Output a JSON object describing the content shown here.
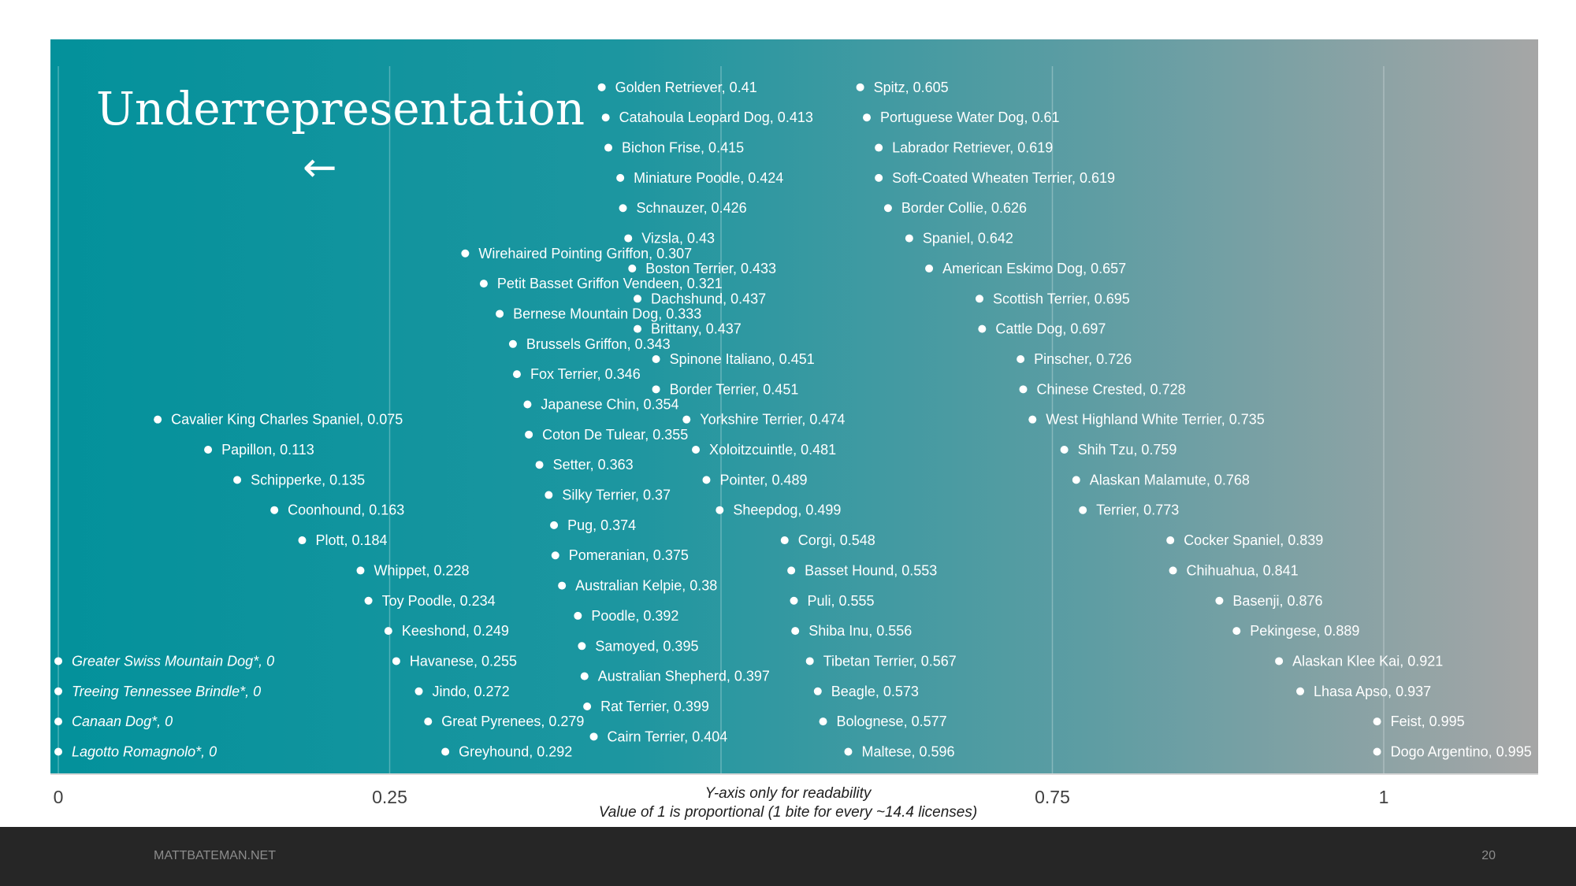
{
  "slide": {
    "footer_site": "MATTBATEMAN.NET",
    "page_number": "20"
  },
  "colors": {
    "gradient_start": "#03919b",
    "gradient_end": "#a5a5a5",
    "points": "#ffffff",
    "footer_bg": "#262626"
  },
  "chart_data": {
    "type": "scatter",
    "title": "Underrepresentation",
    "title_arrow": "←",
    "notes": [
      "Y-axis only for readability",
      "Value of 1 is proportional (1 bite for every ~14.4 licenses)"
    ],
    "x_ticks": [
      "0",
      "0.25",
      "0.75",
      "1"
    ],
    "x_tick_values": [
      0,
      0.25,
      0.75,
      1
    ],
    "xlim": [
      0,
      1.12
    ],
    "grid": true,
    "ylim": [
      0,
      23
    ],
    "points": [
      {
        "label": "Golden Retriever, 0.41",
        "x": 0.41,
        "y": 22.3
      },
      {
        "label": "Catahoula Leopard Dog, 0.413",
        "x": 0.413,
        "y": 21.3
      },
      {
        "label": "Bichon Frise, 0.415",
        "x": 0.415,
        "y": 20.3
      },
      {
        "label": "Miniature Poodle, 0.424",
        "x": 0.424,
        "y": 19.3
      },
      {
        "label": "Schnauzer, 0.426",
        "x": 0.426,
        "y": 18.3
      },
      {
        "label": "Vizsla, 0.43",
        "x": 0.43,
        "y": 17.3
      },
      {
        "label": "Boston Terrier, 0.433",
        "x": 0.433,
        "y": 16.3
      },
      {
        "label": "Dachshund, 0.437",
        "x": 0.437,
        "y": 15.3
      },
      {
        "label": "Brittany, 0.437",
        "x": 0.437,
        "y": 14.3
      },
      {
        "label": "Spinone Italiano, 0.451",
        "x": 0.451,
        "y": 13.3
      },
      {
        "label": "Border Terrier, 0.451",
        "x": 0.451,
        "y": 12.3
      },
      {
        "label": "Yorkshire Terrier, 0.474",
        "x": 0.474,
        "y": 11.3
      },
      {
        "label": "Xoloitzcuintle, 0.481",
        "x": 0.481,
        "y": 10.3
      },
      {
        "label": "Pointer, 0.489",
        "x": 0.489,
        "y": 9.3
      },
      {
        "label": "Sheepdog, 0.499",
        "x": 0.499,
        "y": 8.3
      },
      {
        "label": "Corgi, 0.548",
        "x": 0.548,
        "y": 7.3
      },
      {
        "label": "Basset Hound, 0.553",
        "x": 0.553,
        "y": 6.3
      },
      {
        "label": "Puli, 0.555",
        "x": 0.555,
        "y": 5.3
      },
      {
        "label": "Shiba Inu, 0.556",
        "x": 0.556,
        "y": 4.3
      },
      {
        "label": "Tibetan Terrier, 0.567",
        "x": 0.567,
        "y": 3.3
      },
      {
        "label": "Beagle, 0.573",
        "x": 0.573,
        "y": 2.3
      },
      {
        "label": "Bolognese, 0.577",
        "x": 0.577,
        "y": 1.3
      },
      {
        "label": "Maltese, 0.596",
        "x": 0.596,
        "y": 0.3
      },
      {
        "label": "Spitz, 0.605",
        "x": 0.605,
        "y": 22.3
      },
      {
        "label": "Portuguese Water Dog, 0.61",
        "x": 0.61,
        "y": 21.3
      },
      {
        "label": "Labrador Retriever, 0.619",
        "x": 0.619,
        "y": 20.3
      },
      {
        "label": "Soft-Coated Wheaten Terrier, 0.619",
        "x": 0.619,
        "y": 19.3
      },
      {
        "label": "Border Collie, 0.626",
        "x": 0.626,
        "y": 18.3
      },
      {
        "label": "Spaniel, 0.642",
        "x": 0.642,
        "y": 17.3
      },
      {
        "label": "American Eskimo Dog, 0.657",
        "x": 0.657,
        "y": 16.3
      },
      {
        "label": "Scottish Terrier, 0.695",
        "x": 0.695,
        "y": 15.3
      },
      {
        "label": "Cattle Dog, 0.697",
        "x": 0.697,
        "y": 14.3
      },
      {
        "label": "Pinscher, 0.726",
        "x": 0.726,
        "y": 13.3
      },
      {
        "label": "Chinese Crested, 0.728",
        "x": 0.728,
        "y": 12.3
      },
      {
        "label": "West Highland White Terrier, 0.735",
        "x": 0.735,
        "y": 11.3
      },
      {
        "label": "Shih Tzu, 0.759",
        "x": 0.759,
        "y": 10.3
      },
      {
        "label": "Alaskan Malamute, 0.768",
        "x": 0.768,
        "y": 9.3
      },
      {
        "label": "Terrier, 0.773",
        "x": 0.773,
        "y": 8.3
      },
      {
        "label": "Cocker Spaniel, 0.839",
        "x": 0.839,
        "y": 7.3
      },
      {
        "label": "Chihuahua, 0.841",
        "x": 0.841,
        "y": 6.3
      },
      {
        "label": "Basenji, 0.876",
        "x": 0.876,
        "y": 5.3
      },
      {
        "label": "Pekingese, 0.889",
        "x": 0.889,
        "y": 4.3
      },
      {
        "label": "Alaskan Klee Kai, 0.921",
        "x": 0.921,
        "y": 3.3
      },
      {
        "label": "Lhasa Apso, 0.937",
        "x": 0.937,
        "y": 2.3
      },
      {
        "label": "Feist, 0.995",
        "x": 0.995,
        "y": 1.3
      },
      {
        "label": "Dogo Argentino, 0.995",
        "x": 0.995,
        "y": 0.3
      },
      {
        "label": "Wirehaired Pointing Griffon, 0.307",
        "x": 0.307,
        "y": 16.8
      },
      {
        "label": "Petit Basset Griffon Vendeen, 0.321",
        "x": 0.321,
        "y": 15.8
      },
      {
        "label": "Bernese Mountain Dog, 0.333",
        "x": 0.333,
        "y": 14.8
      },
      {
        "label": "Brussels Griffon, 0.343",
        "x": 0.343,
        "y": 13.8
      },
      {
        "label": "Fox Terrier, 0.346",
        "x": 0.346,
        "y": 12.8
      },
      {
        "label": "Japanese Chin, 0.354",
        "x": 0.354,
        "y": 11.8
      },
      {
        "label": "Coton De Tulear, 0.355",
        "x": 0.355,
        "y": 10.8
      },
      {
        "label": "Setter, 0.363",
        "x": 0.363,
        "y": 9.8
      },
      {
        "label": "Silky Terrier, 0.37",
        "x": 0.37,
        "y": 8.8
      },
      {
        "label": "Pug, 0.374",
        "x": 0.374,
        "y": 7.8
      },
      {
        "label": "Pomeranian, 0.375",
        "x": 0.375,
        "y": 6.8
      },
      {
        "label": "Australian Kelpie, 0.38",
        "x": 0.38,
        "y": 5.8
      },
      {
        "label": "Poodle, 0.392",
        "x": 0.392,
        "y": 4.8
      },
      {
        "label": "Samoyed, 0.395",
        "x": 0.395,
        "y": 3.8
      },
      {
        "label": "Australian Shepherd, 0.397",
        "x": 0.397,
        "y": 2.8
      },
      {
        "label": "Rat Terrier, 0.399",
        "x": 0.399,
        "y": 1.8
      },
      {
        "label": "Cairn Terrier, 0.404",
        "x": 0.404,
        "y": 0.8
      },
      {
        "label": "Cavalier King Charles Spaniel, 0.075",
        "x": 0.075,
        "y": 11.3
      },
      {
        "label": "Papillon, 0.113",
        "x": 0.113,
        "y": 10.3
      },
      {
        "label": "Schipperke, 0.135",
        "x": 0.135,
        "y": 9.3
      },
      {
        "label": "Coonhound, 0.163",
        "x": 0.163,
        "y": 8.3
      },
      {
        "label": "Plott, 0.184",
        "x": 0.184,
        "y": 7.3
      },
      {
        "label": "Whippet, 0.228",
        "x": 0.228,
        "y": 6.3
      },
      {
        "label": "Toy Poodle, 0.234",
        "x": 0.234,
        "y": 5.3
      },
      {
        "label": "Keeshond, 0.249",
        "x": 0.249,
        "y": 4.3
      },
      {
        "label": "Havanese, 0.255",
        "x": 0.255,
        "y": 3.3
      },
      {
        "label": "Jindo, 0.272",
        "x": 0.272,
        "y": 2.3
      },
      {
        "label": "Great Pyrenees, 0.279",
        "x": 0.279,
        "y": 1.3
      },
      {
        "label": "Greyhound, 0.292",
        "x": 0.292,
        "y": 0.3
      },
      {
        "label": "Greater Swiss Mountain Dog*, 0",
        "x": 0,
        "y": 3.3,
        "italic": true
      },
      {
        "label": "Treeing Tennessee Brindle*, 0",
        "x": 0,
        "y": 2.3,
        "italic": true
      },
      {
        "label": "Canaan Dog*, 0",
        "x": 0,
        "y": 1.3,
        "italic": true
      },
      {
        "label": "Lagotto Romagnolo*, 0",
        "x": 0,
        "y": 0.3,
        "italic": true
      }
    ]
  }
}
